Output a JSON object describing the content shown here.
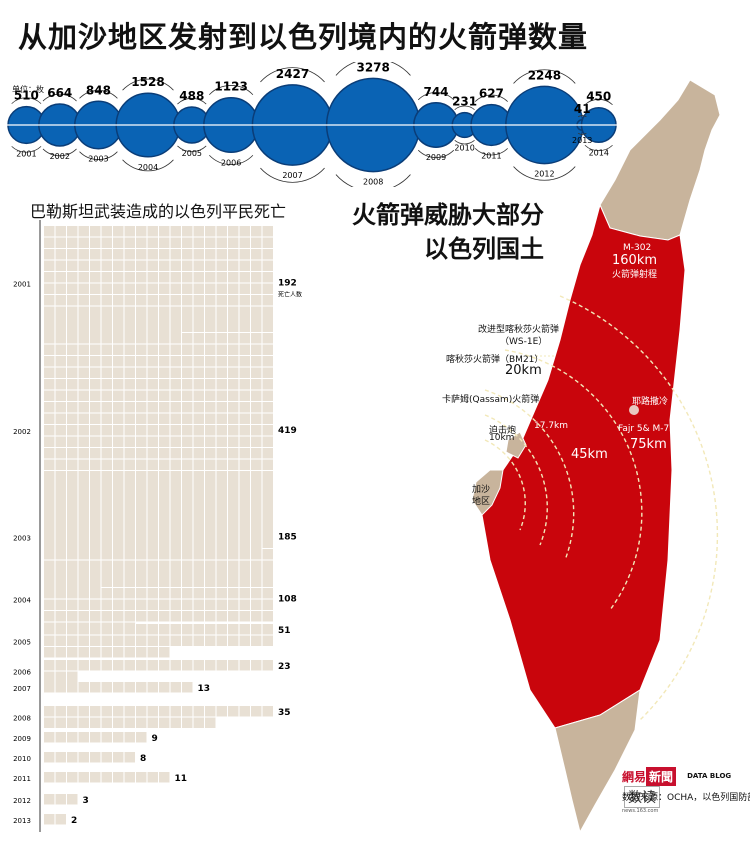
{
  "title": "从加沙地区发射到以色列境内的火箭弹数量",
  "unit_label": "单位：枚",
  "rocket_chart": {
    "type": "bubble",
    "series_color": "#0a63b4",
    "categories": [
      "2001",
      "2002",
      "2003",
      "2004",
      "2005",
      "2006",
      "2007",
      "2008",
      "2009",
      "2010",
      "2011",
      "2012",
      "2013",
      "2014"
    ],
    "values": [
      510,
      664,
      848,
      1528,
      488,
      1123,
      2427,
      3278,
      744,
      231,
      627,
      2248,
      41,
      450
    ]
  },
  "deaths_chart": {
    "type": "bar",
    "title": "巴勒斯坦武装造成的以色列平民死亡",
    "first_note": "死亡人数",
    "series_color": "#e8e0d4",
    "categories": [
      "2001",
      "2002",
      "2003",
      "2004",
      "2005",
      "2006",
      "2007",
      "2008",
      "2009",
      "2010",
      "2011",
      "2012",
      "2013"
    ],
    "values": [
      192,
      419,
      185,
      108,
      51,
      23,
      13,
      35,
      9,
      8,
      11,
      3,
      2
    ]
  },
  "map": {
    "title_lines": [
      "火箭弹威胁大部分",
      "以色列国土"
    ],
    "colors": {
      "threat": "#c9050c",
      "land": "#c8b49c"
    },
    "labels": {
      "m302_name": "M-302",
      "m302_range": "160km",
      "m302_site": "火箭弹射程",
      "ws1e_line1": "改进型喀秋莎火箭弹",
      "ws1e_line2": "（WS-1E）",
      "bm21": "喀秋莎火箭弹（BM21）",
      "bm21_range": "20km",
      "qassam": "卡萨姆(Qassam)火箭弹",
      "jerusalem": "耶路撒冷",
      "fajr": "Fajr 5& M-75",
      "fajr_range": "75km",
      "r45": "45km",
      "r17": "17.7km",
      "mortar": "迫击炮",
      "mortar_range": "10km",
      "gaza_line1": "加沙",
      "gaza_line2": "地区"
    }
  },
  "branding": {
    "net_name": "網易",
    "news_name": "新聞",
    "site": "news.163.com",
    "datablog": "DATA BLOG",
    "shudu": "数读",
    "source": "数据来源：OCHA，以色列国防部"
  }
}
